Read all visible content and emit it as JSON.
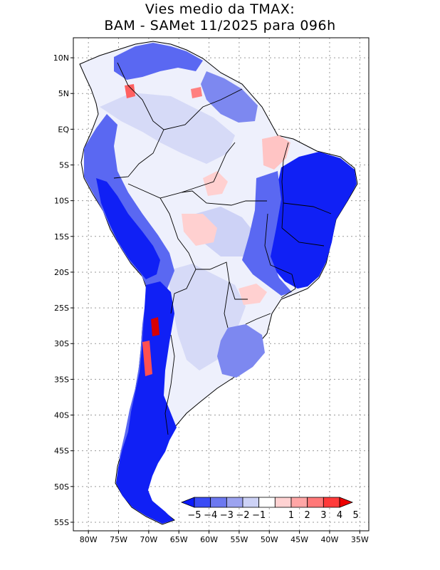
{
  "title": {
    "line1": "Vies medio da TMAX:",
    "line2": "BAM - SAMet 11/2025  para 096h"
  },
  "lat_ticks": [
    "10N",
    "5N",
    "EQ",
    "5S",
    "10S",
    "15S",
    "20S",
    "25S",
    "30S",
    "35S",
    "40S",
    "45S",
    "50S",
    "55S"
  ],
  "lat_values": [
    10,
    5,
    0,
    -5,
    -10,
    -15,
    -20,
    -25,
    -30,
    -35,
    -40,
    -45,
    -50,
    -55
  ],
  "lon_ticks": [
    "80W",
    "75W",
    "70W",
    "65W",
    "60W",
    "55W",
    "50W",
    "45W",
    "40W",
    "35W"
  ],
  "lon_values": [
    -80,
    -75,
    -70,
    -65,
    -60,
    -55,
    -50,
    -45,
    -40,
    -35
  ],
  "extent": {
    "lon_min": -82.5,
    "lon_max": -33.5,
    "lat_min": -56.2,
    "lat_max": 12.8
  },
  "colorbar": {
    "labels": [
      "-5",
      "-4",
      "-3",
      "-2",
      "-1",
      "1",
      "2",
      "3",
      "4",
      "5"
    ],
    "colors": [
      "#0a1aff",
      "#3a4cf5",
      "#6c78f0",
      "#9ca3f0",
      "#cdd2f6",
      "#ffffff",
      "#ffd2d2",
      "#ffa6a6",
      "#ff7878",
      "#ff3a3a",
      "#ee0000"
    ]
  },
  "colors": {
    "strong_blue": "#1020f5",
    "mid_blue": "#5a68f2",
    "light_blue": "#a9b0f2",
    "pale_blue": "#d6daf7",
    "pale_red": "#ffd0d0",
    "red": "#f25050",
    "dark_red": "#d80000"
  }
}
